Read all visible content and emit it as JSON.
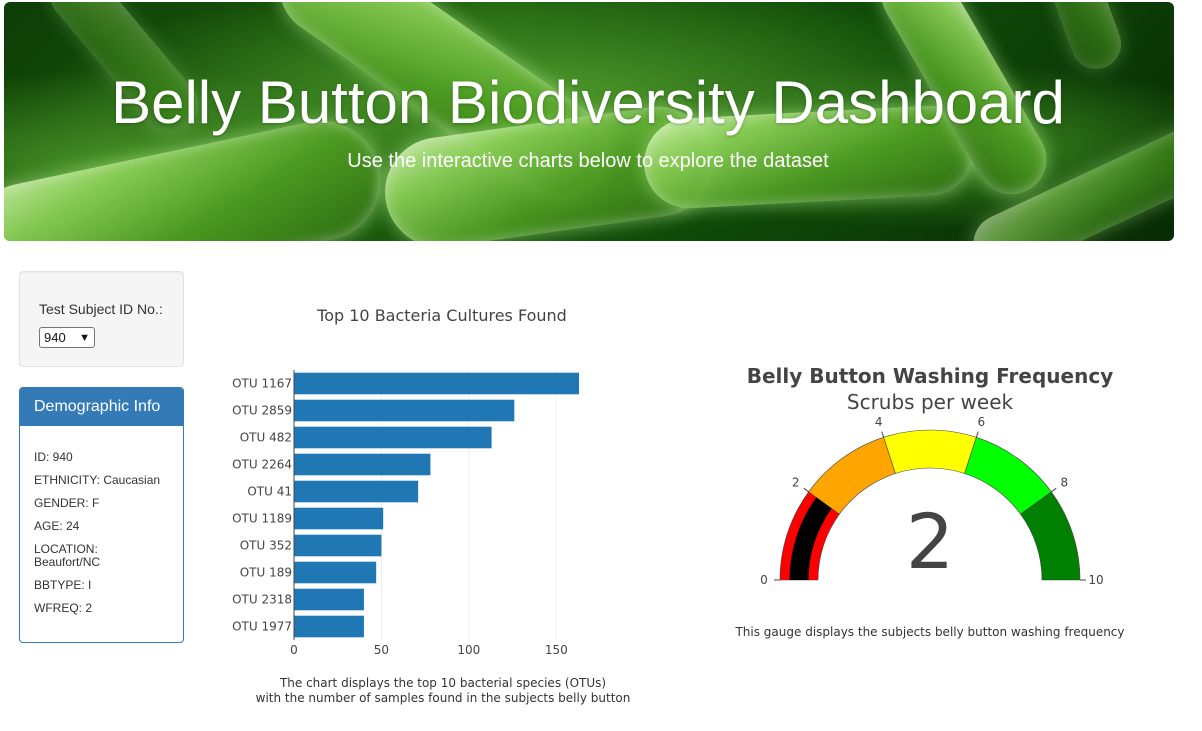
{
  "header": {
    "title": "Belly Button Biodiversity Dashboard",
    "subtitle": "Use the interactive charts below to explore the dataset"
  },
  "selector": {
    "label": "Test Subject ID No.:",
    "selected": "940"
  },
  "demographics": {
    "title": "Demographic Info",
    "lines": [
      "ID: 940",
      "ETHNICITY: Caucasian",
      "GENDER: F",
      "AGE: 24",
      "LOCATION: Beaufort/NC",
      "BBTYPE: I",
      "WFREQ: 2"
    ]
  },
  "colors": {
    "banner_text": "#ffffff",
    "panel_primary": "#337ab7",
    "bar": "#1f77b4"
  },
  "chart_data": [
    {
      "type": "bar",
      "orientation": "horizontal",
      "title": "Top 10 Bacteria Cultures Found",
      "categories": [
        "OTU 1167",
        "OTU 2859",
        "OTU 482",
        "OTU 2264",
        "OTU 41",
        "OTU 1189",
        "OTU 352",
        "OTU 189",
        "OTU 2318",
        "OTU 1977"
      ],
      "values": [
        163,
        126,
        113,
        78,
        71,
        51,
        50,
        47,
        40,
        40
      ],
      "xlim": [
        0,
        175
      ],
      "xticks": [
        0,
        50,
        100,
        150
      ],
      "grid": true,
      "color": "#1f77b4",
      "caption": [
        "The chart displays the top 10 bacterial species (OTUs)",
        "with the number of samples found in the subjects belly button"
      ]
    },
    {
      "type": "gauge",
      "title": "Belly Button Washing Frequency",
      "subtitle": "Scrubs per week",
      "value": 2,
      "range": [
        0,
        10
      ],
      "ticks": [
        0,
        2,
        4,
        6,
        8,
        10
      ],
      "steps": [
        {
          "range": [
            0,
            2
          ],
          "color": "#ff0000"
        },
        {
          "range": [
            2,
            4
          ],
          "color": "#ffa500"
        },
        {
          "range": [
            4,
            6
          ],
          "color": "#ffff00"
        },
        {
          "range": [
            6,
            8
          ],
          "color": "#00ff00"
        },
        {
          "range": [
            8,
            10
          ],
          "color": "#008000"
        }
      ],
      "bar_color": "#000000",
      "caption": "This gauge displays the subjects belly button washing frequency"
    }
  ]
}
